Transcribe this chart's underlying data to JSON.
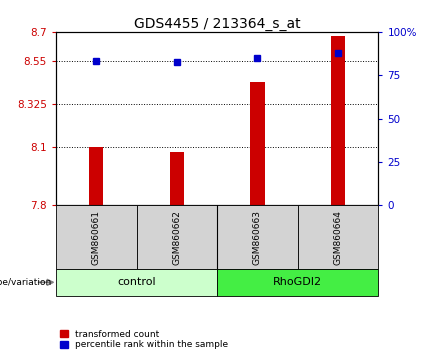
{
  "title": "GDS4455 / 213364_s_at",
  "samples": [
    "GSM860661",
    "GSM860662",
    "GSM860663",
    "GSM860664"
  ],
  "group_defs": [
    [
      "control",
      [
        0,
        1
      ]
    ],
    [
      "RhoGDI2",
      [
        2,
        3
      ]
    ]
  ],
  "red_values": [
    8.1,
    8.075,
    8.44,
    8.68
  ],
  "blue_values": [
    8.548,
    8.542,
    8.562,
    8.592
  ],
  "ylim_left": [
    7.8,
    8.7
  ],
  "ylim_right": [
    0,
    100
  ],
  "yticks_left": [
    7.8,
    8.1,
    8.325,
    8.55,
    8.7
  ],
  "ytick_labels_left": [
    "7.8",
    "8.1",
    "8.325",
    "8.55",
    "8.7"
  ],
  "yticks_right": [
    0,
    25,
    50,
    75,
    100
  ],
  "ytick_labels_right": [
    "0",
    "25",
    "50",
    "75",
    "100%"
  ],
  "hlines": [
    8.1,
    8.325,
    8.55
  ],
  "bar_color": "#cc0000",
  "dot_color": "#0000cc",
  "left_tick_color": "#cc0000",
  "right_tick_color": "#0000cc",
  "group_colors": {
    "control": "#ccffcc",
    "RhoGDI2": "#44ee44"
  },
  "bar_width": 0.18,
  "x_positions": [
    0,
    1,
    2,
    3
  ],
  "legend_red": "transformed count",
  "legend_blue": "percentile rank within the sample",
  "genotype_label": "genotype/variation",
  "sample_bg": "#d3d3d3",
  "title_fontsize": 10,
  "tick_fontsize": 7.5,
  "sample_fontsize": 6.5,
  "group_fontsize": 8,
  "legend_fontsize": 6.5
}
